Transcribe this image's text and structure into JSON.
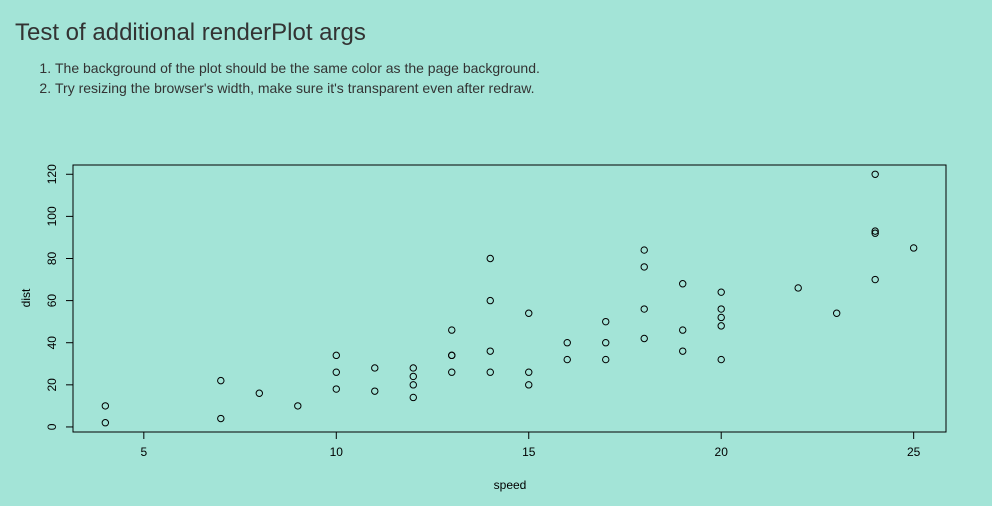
{
  "page": {
    "title": "Test of additional renderPlot args",
    "instructions": [
      "The background of the plot should be the same color as the page background.",
      "Try resizing the browser's width, make sure it's transparent even after redraw."
    ],
    "background_color": "#a3e4d7"
  },
  "chart_data": {
    "type": "scatter",
    "title": "",
    "xlabel": "speed",
    "ylabel": "dist",
    "xlim": [
      3.16,
      25.84
    ],
    "ylim": [
      -2.4,
      124.4
    ],
    "x_ticks": [
      5,
      10,
      15,
      20,
      25
    ],
    "y_ticks": [
      0,
      20,
      40,
      60,
      80,
      100,
      120
    ],
    "grid": false,
    "legend": "none",
    "marker": "open-circle",
    "marker_color": "#000000",
    "points": [
      {
        "x": 4,
        "y": 2
      },
      {
        "x": 4,
        "y": 10
      },
      {
        "x": 7,
        "y": 4
      },
      {
        "x": 7,
        "y": 22
      },
      {
        "x": 8,
        "y": 16
      },
      {
        "x": 9,
        "y": 10
      },
      {
        "x": 10,
        "y": 18
      },
      {
        "x": 10,
        "y": 26
      },
      {
        "x": 10,
        "y": 34
      },
      {
        "x": 11,
        "y": 17
      },
      {
        "x": 11,
        "y": 28
      },
      {
        "x": 12,
        "y": 14
      },
      {
        "x": 12,
        "y": 20
      },
      {
        "x": 12,
        "y": 24
      },
      {
        "x": 12,
        "y": 28
      },
      {
        "x": 13,
        "y": 26
      },
      {
        "x": 13,
        "y": 34
      },
      {
        "x": 13,
        "y": 34
      },
      {
        "x": 13,
        "y": 46
      },
      {
        "x": 14,
        "y": 26
      },
      {
        "x": 14,
        "y": 36
      },
      {
        "x": 14,
        "y": 60
      },
      {
        "x": 14,
        "y": 80
      },
      {
        "x": 15,
        "y": 20
      },
      {
        "x": 15,
        "y": 26
      },
      {
        "x": 15,
        "y": 54
      },
      {
        "x": 16,
        "y": 32
      },
      {
        "x": 16,
        "y": 40
      },
      {
        "x": 17,
        "y": 32
      },
      {
        "x": 17,
        "y": 40
      },
      {
        "x": 17,
        "y": 50
      },
      {
        "x": 18,
        "y": 42
      },
      {
        "x": 18,
        "y": 56
      },
      {
        "x": 18,
        "y": 76
      },
      {
        "x": 18,
        "y": 84
      },
      {
        "x": 19,
        "y": 36
      },
      {
        "x": 19,
        "y": 46
      },
      {
        "x": 19,
        "y": 68
      },
      {
        "x": 20,
        "y": 32
      },
      {
        "x": 20,
        "y": 48
      },
      {
        "x": 20,
        "y": 52
      },
      {
        "x": 20,
        "y": 56
      },
      {
        "x": 20,
        "y": 64
      },
      {
        "x": 22,
        "y": 66
      },
      {
        "x": 23,
        "y": 54
      },
      {
        "x": 24,
        "y": 70
      },
      {
        "x": 24,
        "y": 92
      },
      {
        "x": 24,
        "y": 93
      },
      {
        "x": 24,
        "y": 120
      },
      {
        "x": 25,
        "y": 85
      }
    ]
  }
}
